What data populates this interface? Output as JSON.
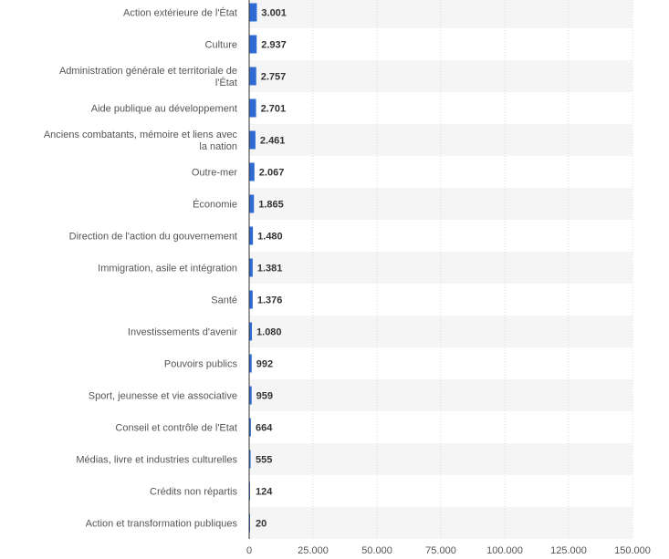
{
  "chart_data": {
    "type": "bar",
    "orientation": "horizontal",
    "title": "",
    "xlabel": "",
    "ylabel": "",
    "xlim": [
      0,
      150000
    ],
    "ticks": [
      0,
      25000,
      50000,
      75000,
      100000,
      125000,
      150000
    ],
    "tick_labels": [
      "0",
      "25.000",
      "50.000",
      "75.000",
      "100.000",
      "125.000",
      "150.000"
    ],
    "grid": true,
    "bar_color": "#2e6ad1",
    "categories": [
      "Action extérieure de l'État",
      "Culture",
      "Administration générale et territoriale de l'État",
      "Aide publique au développement",
      "Anciens combatants, mémoire et liens avec la nation",
      "Outre-mer",
      "Économie",
      "Direction de l'action du gouvernement",
      "Immigration, asile et intégration",
      "Santé",
      "Investissements d'avenir",
      "Pouvoirs publics",
      "Sport, jeunesse et vie associative",
      "Conseil et contrôle de l'Etat",
      "Médias, livre et industries culturelles",
      "Crédits non répartis",
      "Action et transformation publiques"
    ],
    "values": [
      3001,
      2937,
      2757,
      2701,
      2461,
      2067,
      1865,
      1480,
      1381,
      1376,
      1080,
      992,
      959,
      664,
      555,
      124,
      20
    ],
    "value_labels": [
      "3.001",
      "2.937",
      "2.757",
      "2.701",
      "2.461",
      "2.067",
      "1.865",
      "1.480",
      "1.381",
      "1.376",
      "1.080",
      "992",
      "959",
      "664",
      "555",
      "124",
      "20"
    ]
  }
}
